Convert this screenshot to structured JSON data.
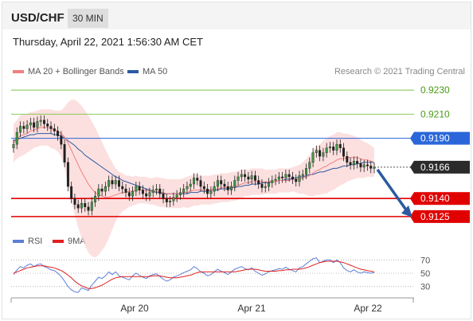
{
  "header": {
    "pair": "USD/CHF",
    "interval": "30 MIN"
  },
  "timestamp": "Thursday, April 22, 2021 1:56:30 AM CET",
  "copyright": "Research © 2021 Trading Central",
  "legend": [
    {
      "label": "MA 20 + Bollinger Bands",
      "color": "#f08080"
    },
    {
      "label": "MA 50",
      "color": "#2c5aa0"
    }
  ],
  "rsi_legend": [
    {
      "label": "RSI",
      "color": "#5b7fd6"
    },
    {
      "label": "9MA",
      "color": "#e02020"
    }
  ],
  "chart_data": [
    {
      "type": "candlestick",
      "pair": "USD/CHF",
      "ylim": [
        0.9115,
        0.924
      ],
      "x_ticks": [
        "Apr 20",
        "Apr 21",
        "Apr 22"
      ],
      "levels": [
        {
          "label": "0.9230",
          "value": 0.923,
          "kind": "resistance",
          "color": "#7cc243"
        },
        {
          "label": "0.9210",
          "value": 0.921,
          "kind": "resistance",
          "color": "#7cc243"
        },
        {
          "label": "0.9190",
          "value": 0.919,
          "kind": "pivot",
          "color": "#2a66d9"
        },
        {
          "label": "0.9140",
          "value": 0.914,
          "kind": "support",
          "color": "#e00000"
        },
        {
          "label": "0.9125",
          "value": 0.9125,
          "kind": "support",
          "color": "#e00000"
        }
      ],
      "current_price": {
        "label": "0.9166",
        "value": 0.9166
      },
      "close": [
        0.9185,
        0.9195,
        0.92,
        0.9198,
        0.9201,
        0.9203,
        0.9199,
        0.9204,
        0.9205,
        0.9202,
        0.92,
        0.9198,
        0.9196,
        0.9192,
        0.9185,
        0.917,
        0.915,
        0.914,
        0.9135,
        0.9132,
        0.9136,
        0.9133,
        0.913,
        0.9137,
        0.9142,
        0.9148,
        0.9146,
        0.915,
        0.9155,
        0.9152,
        0.9155,
        0.915,
        0.9148,
        0.9145,
        0.9142,
        0.9146,
        0.915,
        0.9147,
        0.9144,
        0.9142,
        0.9145,
        0.9147,
        0.9148,
        0.9144,
        0.914,
        0.9137,
        0.9138,
        0.9141,
        0.9143,
        0.9145,
        0.9148,
        0.915,
        0.9152,
        0.9157,
        0.9155,
        0.915,
        0.9148,
        0.9144,
        0.9146,
        0.915,
        0.9155,
        0.9152,
        0.915,
        0.9147,
        0.915,
        0.9155,
        0.9158,
        0.916,
        0.9158,
        0.9156,
        0.9159,
        0.9155,
        0.9152,
        0.9149,
        0.915,
        0.9153,
        0.9155,
        0.9156,
        0.9158,
        0.9157,
        0.916,
        0.9158,
        0.9156,
        0.9154,
        0.9159,
        0.916,
        0.9165,
        0.917,
        0.9178,
        0.918,
        0.9175,
        0.9178,
        0.9182,
        0.9183,
        0.918,
        0.9185,
        0.9182,
        0.9175,
        0.917,
        0.9168,
        0.9171,
        0.9169,
        0.9166,
        0.9168,
        0.9167,
        0.9165,
        0.9166
      ],
      "ma20": [
        0.9186,
        0.9189,
        0.9192,
        0.9193,
        0.9194,
        0.9196,
        0.9197,
        0.9198,
        0.9199,
        0.9199,
        0.9199,
        0.9198,
        0.9197,
        0.9196,
        0.9194,
        0.9191,
        0.9186,
        0.918,
        0.9174,
        0.9168,
        0.9162,
        0.9157,
        0.9152,
        0.9148,
        0.9145,
        0.9143,
        0.9142,
        0.9141,
        0.9141,
        0.9142,
        0.9143,
        0.9144,
        0.9145,
        0.9145,
        0.9146,
        0.9146,
        0.9147,
        0.9147,
        0.9147,
        0.9147,
        0.9146,
        0.9146,
        0.9146,
        0.9145,
        0.9145,
        0.9144,
        0.9144,
        0.9144,
        0.9144,
        0.9144,
        0.9145,
        0.9145,
        0.9146,
        0.9147,
        0.9147,
        0.9147,
        0.9147,
        0.9147,
        0.9147,
        0.9148,
        0.9148,
        0.9149,
        0.9149,
        0.9149,
        0.915,
        0.915,
        0.9151,
        0.9152,
        0.9153,
        0.9153,
        0.9154,
        0.9154,
        0.9154,
        0.9154,
        0.9154,
        0.9154,
        0.9154,
        0.9154,
        0.9155,
        0.9155,
        0.9155,
        0.9155,
        0.9156,
        0.9156,
        0.9156,
        0.9157,
        0.9158,
        0.9159,
        0.9161,
        0.9163,
        0.9164,
        0.9166,
        0.9167,
        0.9169,
        0.917,
        0.9172,
        0.9173,
        0.9173,
        0.9174,
        0.9174,
        0.9174,
        0.9174,
        0.9173,
        0.9172,
        0.9172,
        0.9171,
        0.917
      ],
      "ma50": [
        0.9188,
        0.9189,
        0.919,
        0.9191,
        0.9192,
        0.9193,
        0.9193,
        0.9194,
        0.9194,
        0.9194,
        0.9194,
        0.9194,
        0.9193,
        0.9193,
        0.9192,
        0.919,
        0.9188,
        0.9186,
        0.9184,
        0.9181,
        0.9179,
        0.9176,
        0.9174,
        0.9172,
        0.917,
        0.9168,
        0.9166,
        0.9164,
        0.9162,
        0.916,
        0.9158,
        0.9157,
        0.9155,
        0.9154,
        0.9153,
        0.9152,
        0.9151,
        0.915,
        0.9149,
        0.9148,
        0.9147,
        0.9146,
        0.9145,
        0.9145,
        0.9144,
        0.9144,
        0.9144,
        0.9144,
        0.9144,
        0.9144,
        0.9144,
        0.9144,
        0.9145,
        0.9145,
        0.9145,
        0.9146,
        0.9146,
        0.9146,
        0.9147,
        0.9147,
        0.9147,
        0.9148,
        0.9148,
        0.9148,
        0.9149,
        0.9149,
        0.915,
        0.915,
        0.9151,
        0.9151,
        0.9152,
        0.9152,
        0.9152,
        0.9153,
        0.9153,
        0.9153,
        0.9154,
        0.9154,
        0.9155,
        0.9155,
        0.9156,
        0.9156,
        0.9157,
        0.9157,
        0.9158,
        0.9158,
        0.9159,
        0.916,
        0.916,
        0.9161,
        0.9162,
        0.9162,
        0.9163,
        0.9164,
        0.9165,
        0.9165,
        0.9166,
        0.9167,
        0.9167,
        0.9168,
        0.9168,
        0.9169,
        0.9169,
        0.917,
        0.917,
        0.917,
        0.917
      ],
      "band_width": [
        0.0016,
        0.0016,
        0.0017,
        0.0017,
        0.0016,
        0.0016,
        0.0015,
        0.0015,
        0.0015,
        0.0015,
        0.0015,
        0.0016,
        0.0016,
        0.0017,
        0.0019,
        0.0025,
        0.0034,
        0.0042,
        0.0048,
        0.0052,
        0.0055,
        0.0056,
        0.0057,
        0.0056,
        0.0054,
        0.005,
        0.0045,
        0.004,
        0.0034,
        0.0028,
        0.0022,
        0.0018,
        0.0016,
        0.0014,
        0.0013,
        0.0012,
        0.0012,
        0.0011,
        0.0011,
        0.0011,
        0.0011,
        0.0011,
        0.0012,
        0.0012,
        0.0012,
        0.0012,
        0.0012,
        0.0012,
        0.0012,
        0.0012,
        0.0012,
        0.0013,
        0.0013,
        0.0013,
        0.0013,
        0.0012,
        0.0012,
        0.0012,
        0.0012,
        0.0012,
        0.0012,
        0.0012,
        0.0012,
        0.0012,
        0.0012,
        0.0012,
        0.0012,
        0.0012,
        0.0011,
        0.0011,
        0.0011,
        0.0011,
        0.0011,
        0.0011,
        0.001,
        0.001,
        0.001,
        0.001,
        0.001,
        0.001,
        0.001,
        0.001,
        0.001,
        0.0011,
        0.0012,
        0.0013,
        0.0015,
        0.0017,
        0.0019,
        0.002,
        0.0021,
        0.0022,
        0.0023,
        0.0023,
        0.0023,
        0.0023,
        0.0022,
        0.0021,
        0.002,
        0.0019,
        0.0018,
        0.0017,
        0.0016,
        0.0015,
        0.0014,
        0.0013,
        0.0012
      ]
    },
    {
      "type": "line",
      "name": "RSI",
      "ylim": [
        20,
        80
      ],
      "y_ticks": [
        70,
        50,
        30
      ],
      "rsi": [
        48,
        55,
        60,
        58,
        62,
        64,
        60,
        63,
        64,
        60,
        58,
        55,
        54,
        50,
        45,
        38,
        30,
        25,
        22,
        21,
        28,
        26,
        24,
        32,
        38,
        44,
        42,
        46,
        52,
        48,
        52,
        46,
        44,
        42,
        40,
        46,
        50,
        47,
        44,
        42,
        46,
        48,
        49,
        45,
        41,
        38,
        40,
        44,
        46,
        48,
        51,
        53,
        55,
        60,
        57,
        52,
        50,
        46,
        48,
        52,
        56,
        53,
        51,
        48,
        52,
        56,
        58,
        60,
        57,
        55,
        58,
        53,
        50,
        47,
        49,
        52,
        54,
        55,
        57,
        56,
        59,
        56,
        54,
        52,
        58,
        60,
        64,
        68,
        72,
        73,
        66,
        68,
        70,
        70,
        66,
        70,
        66,
        58,
        54,
        52,
        55,
        52,
        50,
        52,
        51,
        50,
        51
      ],
      "ma9": [
        50,
        52,
        54,
        56,
        58,
        59,
        60,
        61,
        61,
        61,
        60,
        59,
        58,
        56,
        54,
        51,
        47,
        43,
        38,
        34,
        31,
        29,
        27,
        27,
        28,
        30,
        32,
        35,
        38,
        41,
        43,
        44,
        45,
        45,
        45,
        45,
        45,
        45,
        45,
        45,
        45,
        46,
        46,
        46,
        45,
        44,
        43,
        43,
        43,
        44,
        45,
        46,
        47,
        49,
        51,
        52,
        52,
        52,
        52,
        52,
        52,
        52,
        52,
        52,
        52,
        52,
        53,
        54,
        55,
        56,
        56,
        56,
        55,
        54,
        53,
        53,
        53,
        53,
        54,
        54,
        55,
        55,
        56,
        56,
        56,
        57,
        58,
        60,
        62,
        64,
        66,
        67,
        68,
        68,
        68,
        68,
        67,
        66,
        64,
        62,
        60,
        58,
        56,
        55,
        54,
        53,
        52
      ]
    }
  ]
}
